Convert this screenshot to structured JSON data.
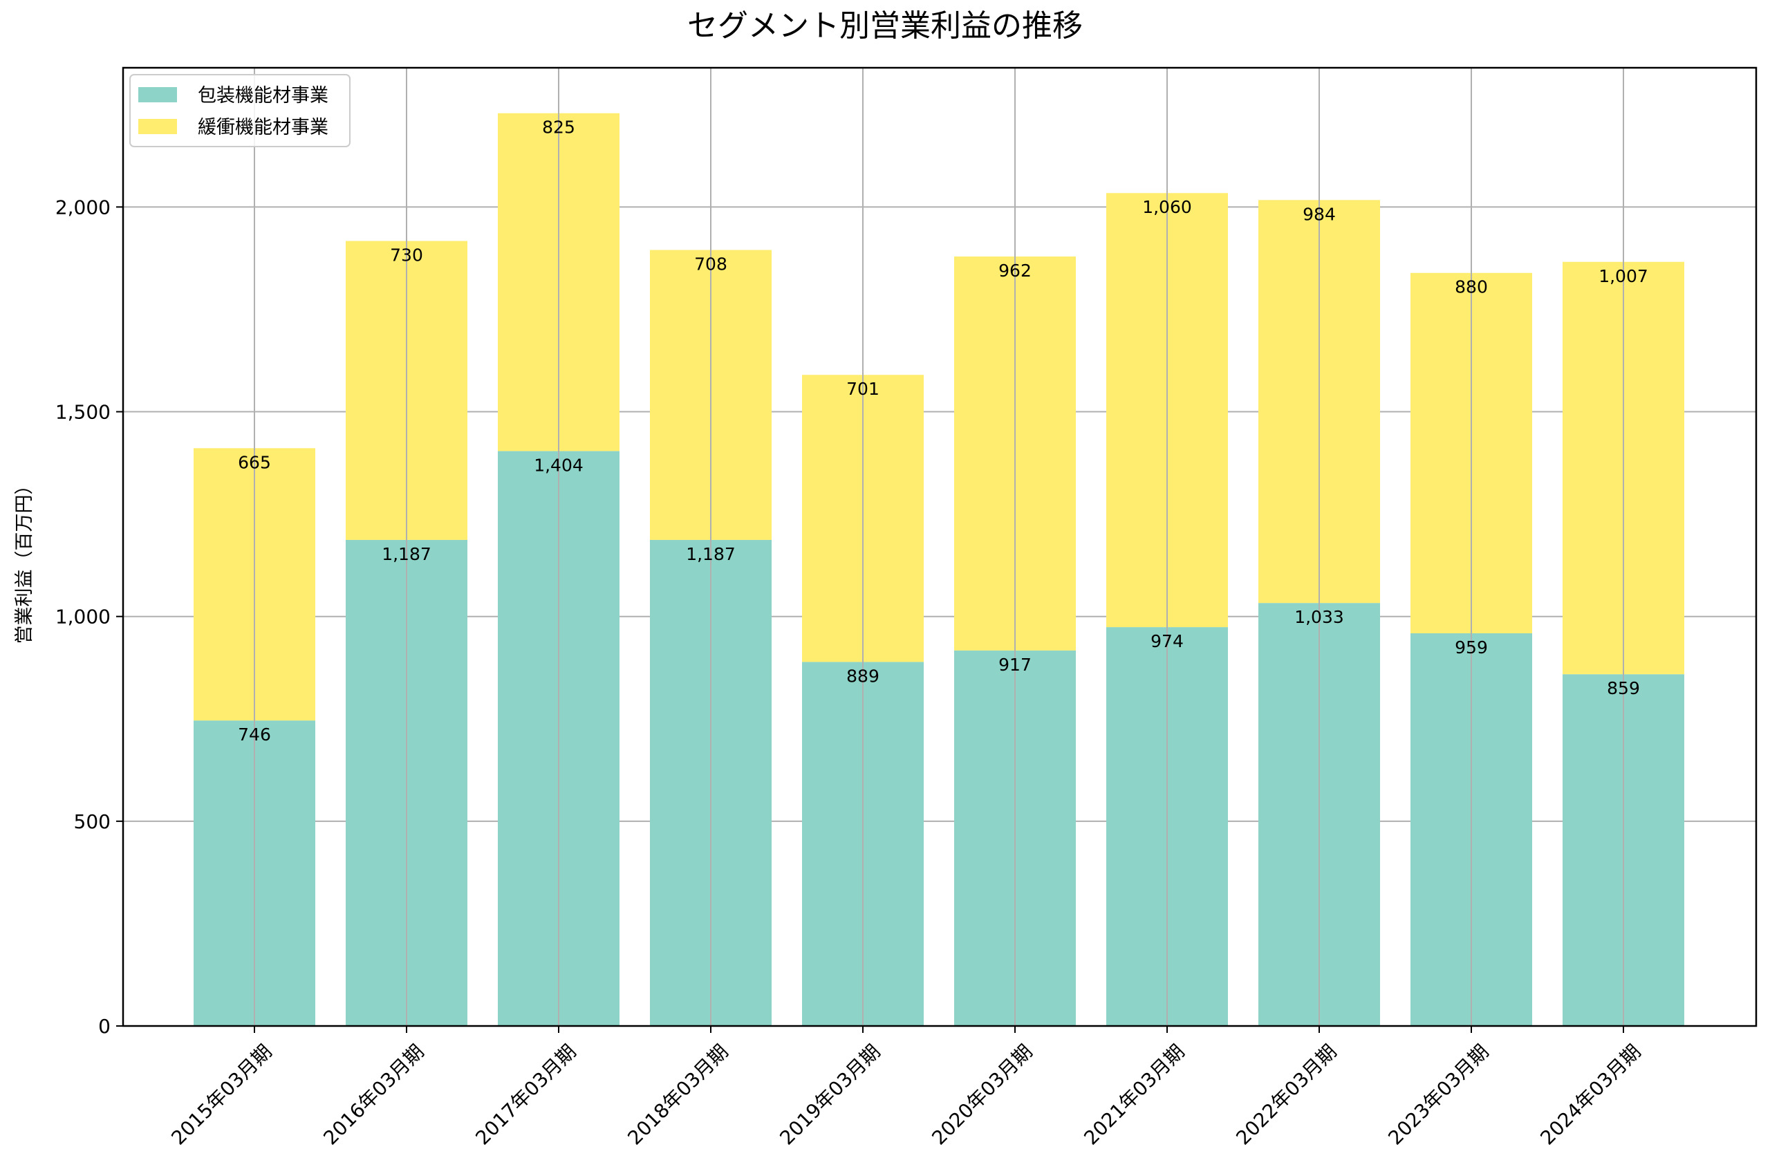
{
  "chart_data": {
    "type": "bar",
    "stacked": true,
    "title": "セグメント別営業利益の推移",
    "xlabel": "",
    "ylabel": "営業利益（百万円）",
    "ylim": [
      0,
      2340
    ],
    "yticks": [
      0,
      500,
      1000,
      1500,
      2000
    ],
    "ytick_labels": [
      "0",
      "500",
      "1,000",
      "1,500",
      "2,000"
    ],
    "grid": true,
    "legend_position": "top-left",
    "categories": [
      "2015年03月期",
      "2016年03月期",
      "2017年03月期",
      "2018年03月期",
      "2019年03月期",
      "2020年03月期",
      "2021年03月期",
      "2022年03月期",
      "2023年03月期",
      "2024年03月期"
    ],
    "series": [
      {
        "name": "包装機能材事業",
        "color": "#8DD3C7",
        "values": [
          746,
          1187,
          1404,
          1187,
          889,
          917,
          974,
          1033,
          959,
          859
        ],
        "labels": [
          "746",
          "1,187",
          "1,404",
          "1,187",
          "889",
          "917",
          "974",
          "1,033",
          "959",
          "859"
        ]
      },
      {
        "name": "緩衝機能材事業",
        "color": "#FFED6F",
        "values": [
          665,
          730,
          825,
          708,
          701,
          962,
          1060,
          984,
          880,
          1007
        ],
        "labels": [
          "665",
          "730",
          "825",
          "708",
          "701",
          "962",
          "1,060",
          "984",
          "880",
          "1,007"
        ]
      }
    ]
  }
}
